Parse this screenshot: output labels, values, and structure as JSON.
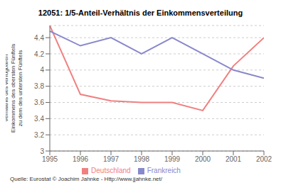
{
  "chart_data": {
    "type": "line",
    "title": "12051: 1/5-Anteil-Verhältnis der Einkommensverteilung",
    "ylabel": "Verhältnis des verfügbaren\nEinkommens des obersten Fünftels\nzu dem des untersten Fünftels",
    "source": "Quelle: Eurostat  © Joachim Jahnke - Http://www.jjahnke.net/",
    "x": [
      1995,
      1996,
      1997,
      1998,
      1999,
      2000,
      2001,
      2002
    ],
    "xlim": [
      1995,
      2002
    ],
    "xticks": [
      1995,
      1996,
      1997,
      1998,
      1999,
      2000,
      2001,
      2002
    ],
    "series": [
      {
        "name": "Deutschland",
        "color": "#f08080",
        "values": [
          4.55,
          3.7,
          3.62,
          3.6,
          3.6,
          3.5,
          4.05,
          4.4
        ]
      },
      {
        "name": "Frankreich",
        "color": "#8888cc",
        "values": [
          4.48,
          4.3,
          4.4,
          4.2,
          4.4,
          4.2,
          4.0,
          3.9
        ]
      }
    ],
    "ylim": [
      3.0,
      4.55
    ],
    "yticks": [
      3.0,
      3.2,
      3.4,
      3.6,
      3.8,
      4.0,
      4.2,
      4.4
    ],
    "grid": "y",
    "legend": "bottom"
  }
}
